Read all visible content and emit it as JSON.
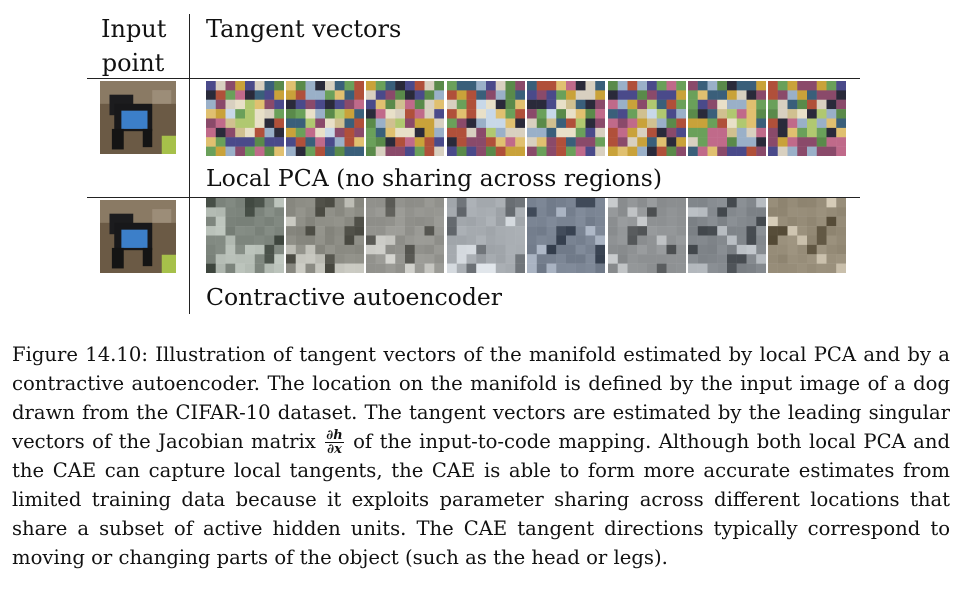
{
  "header": {
    "input_label_line1": "Input",
    "input_label_line2": "point",
    "tangent_title": "Tangent vectors"
  },
  "rows": [
    {
      "label": "Local PCA (no sharing across regions)",
      "method": "local-pca"
    },
    {
      "label": "Contractive autoencoder",
      "method": "cae"
    }
  ],
  "caption": {
    "figure_label": "Figure 14.10:",
    "text_before_math": "Illustration of tangent vectors of the manifold estimated by local PCA and by a contractive autoencoder. The location on the manifold is defined by the input image of a dog drawn from the CIFAR-10 dataset. The tangent vectors are estimated by the leading singular vectors of the Jacobian matrix",
    "math_numerator": "∂h",
    "math_denominator": "∂x",
    "text_after_math": "of the input-to-code mapping. Although both local PCA and the CAE can capture local tangents, the CAE is able to form more accurate estimates from limited training data because it exploits parameter sharing across different locations that share a subset of active hidden units. The CAE tangent directions typically correspond to moving or changing parts of the object (such as the head or legs)."
  }
}
